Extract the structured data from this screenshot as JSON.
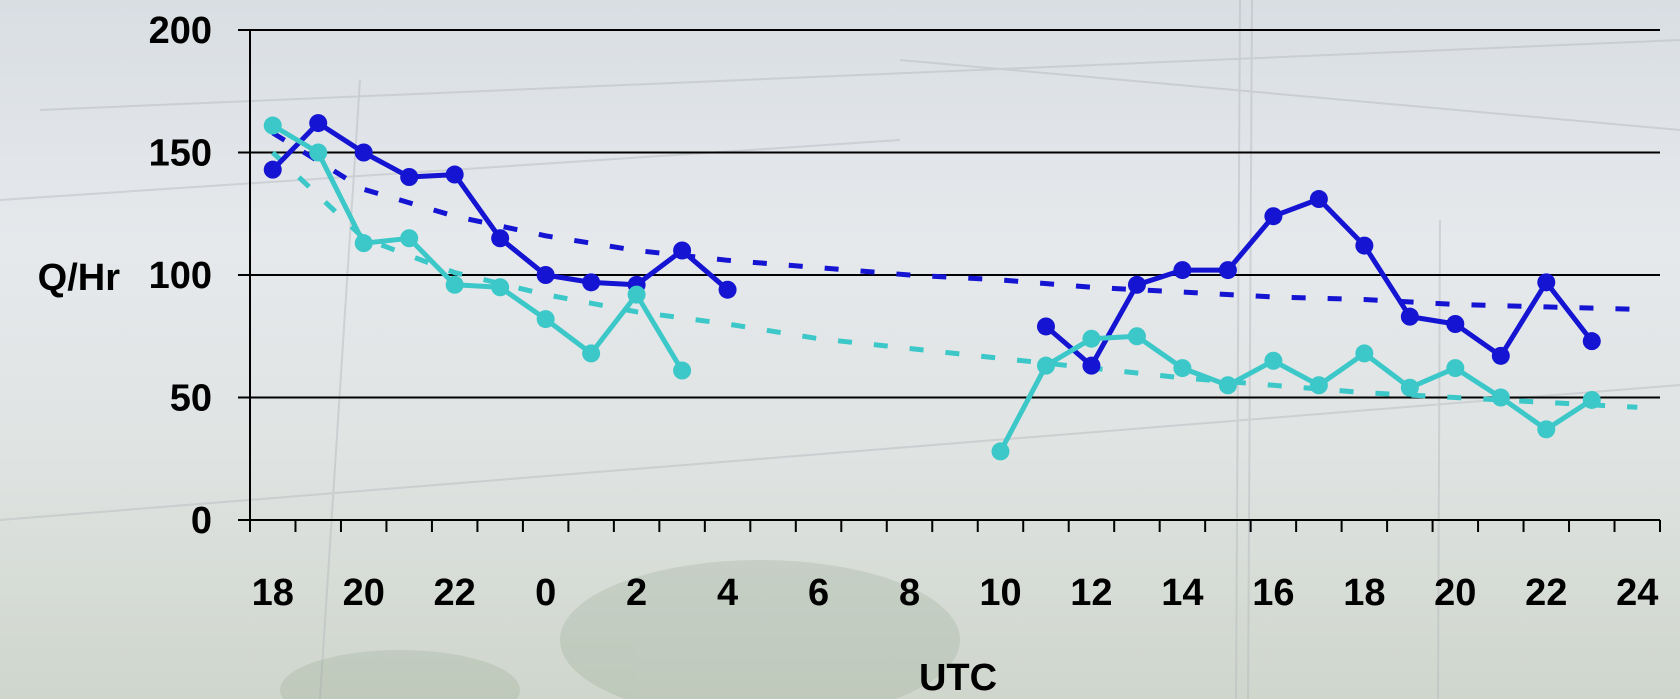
{
  "chart_data": {
    "type": "line",
    "xlabel": "UTC",
    "ylabel": "Q/Hr",
    "ylim": [
      0,
      200
    ],
    "yticks": [
      0,
      50,
      100,
      150,
      200
    ],
    "grid": "horizontal",
    "x_tick_labels": [
      "18",
      "20",
      "22",
      "0",
      "2",
      "4",
      "6",
      "8",
      "10",
      "12",
      "14",
      "16",
      "18",
      "20",
      "22",
      "24"
    ],
    "x_range_hours": [
      17.5,
      48.5
    ],
    "colors": {
      "series_dark": "#1414d2",
      "series_light": "#3cc8c8"
    },
    "series": [
      {
        "color": "#1414d2",
        "segments": [
          {
            "x": [
              18,
              19,
              20,
              21,
              22,
              23,
              24,
              25,
              26,
              27,
              28
            ],
            "y": [
              143,
              162,
              150,
              140,
              141,
              115,
              100,
              97,
              96,
              110,
              94
            ]
          },
          {
            "x": [
              35,
              36,
              37,
              38,
              39,
              40,
              41,
              42,
              43,
              44,
              45,
              46,
              47
            ],
            "y": [
              79,
              63,
              96,
              102,
              102,
              124,
              131,
              112,
              83,
              80,
              67,
              97,
              73
            ]
          }
        ]
      },
      {
        "color": "#3cc8c8",
        "segments": [
          {
            "x": [
              18,
              19,
              20,
              21,
              22,
              23,
              24,
              25,
              26,
              27
            ],
            "y": [
              161,
              150,
              113,
              115,
              96,
              95,
              82,
              68,
              92,
              61
            ]
          },
          {
            "x": [
              34,
              35,
              36,
              37,
              38,
              39,
              40,
              41,
              42,
              43,
              44,
              45,
              46,
              47
            ],
            "y": [
              28,
              63,
              74,
              75,
              62,
              55,
              65,
              55,
              68,
              54,
              62,
              50,
              37,
              49
            ]
          }
        ]
      }
    ],
    "trendlines": [
      {
        "color": "#1414d2",
        "kind": "log",
        "x": [
          18,
          20,
          22,
          24,
          26,
          28,
          30,
          32,
          34,
          36,
          38,
          40,
          42,
          44,
          46,
          48
        ],
        "y": [
          158,
          135,
          124,
          116,
          110,
          106,
          103,
          100,
          98,
          95,
          93,
          91,
          90,
          88,
          87,
          86
        ]
      },
      {
        "color": "#3cc8c8",
        "kind": "log",
        "x": [
          18,
          20,
          22,
          24,
          26,
          28,
          30,
          32,
          34,
          36,
          38,
          40,
          42,
          44,
          46,
          48
        ],
        "y": [
          150,
          115,
          101,
          92,
          85,
          80,
          74,
          70,
          66,
          62,
          58,
          55,
          52,
          50,
          48,
          46
        ]
      }
    ]
  }
}
